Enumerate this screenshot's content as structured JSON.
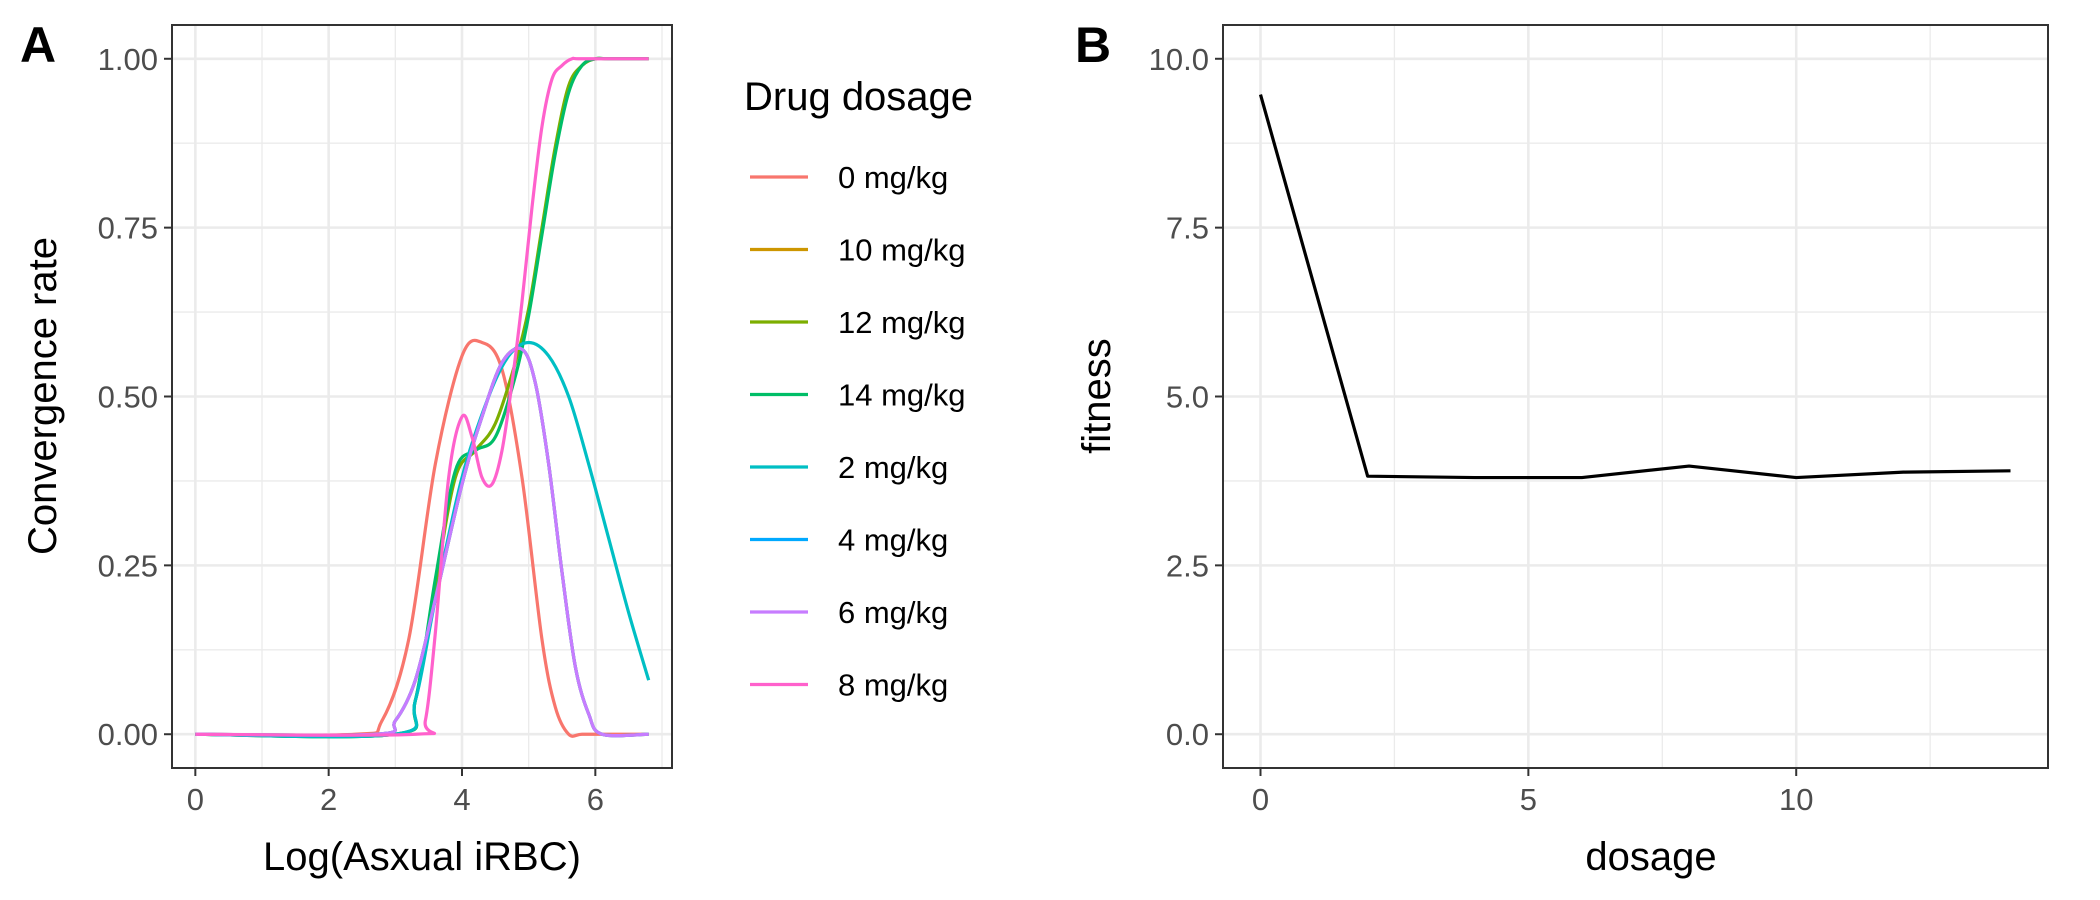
{
  "chart_data": [
    {
      "panel": "A",
      "type": "line",
      "xlabel": "Log(Asxual iRBC)",
      "ylabel": "Convergence rate",
      "xlim": [
        -0.35,
        7.15
      ],
      "ylim": [
        -0.05,
        1.05
      ],
      "x_ticks": [
        0,
        2,
        4,
        6
      ],
      "x_tick_labels": [
        "0",
        "2",
        "4",
        "6"
      ],
      "y_ticks": [
        0,
        0.25,
        0.5,
        0.75,
        1
      ],
      "y_tick_labels": [
        "0.00",
        "0.25",
        "0.50",
        "0.75",
        "1.00"
      ],
      "grid": true,
      "legend": {
        "title": "Drug dosage",
        "position": "right"
      },
      "series": [
        {
          "name": "0 mg/kg",
          "color": "#F8766D",
          "x": [
            0,
            2.4,
            2.8,
            3.2,
            3.6,
            4.0,
            4.3,
            4.6,
            4.9,
            5.2,
            5.4,
            5.6,
            5.8,
            6.2,
            6.8
          ],
          "y": [
            0,
            0,
            0.02,
            0.14,
            0.4,
            0.56,
            0.58,
            0.54,
            0.38,
            0.14,
            0.04,
            0,
            0,
            0,
            0
          ]
        },
        {
          "name": "10 mg/kg",
          "color": "#CD9600",
          "x": [
            0,
            2.7,
            3.0,
            3.3,
            3.6,
            4.0,
            4.3,
            4.6,
            4.9,
            5.1,
            5.3,
            5.5,
            5.7,
            5.9,
            6.1,
            6.8
          ],
          "y": [
            0,
            0,
            0.02,
            0.08,
            0.2,
            0.37,
            0.47,
            0.55,
            0.57,
            0.52,
            0.4,
            0.24,
            0.1,
            0.03,
            0,
            0
          ]
        },
        {
          "name": "12 mg/kg",
          "color": "#7CAE00",
          "x": [
            0,
            3.0,
            3.3,
            3.6,
            3.9,
            4.2,
            4.5,
            4.8,
            5.0,
            5.2,
            5.4,
            5.6,
            5.8,
            6.0,
            6.2,
            6.8
          ],
          "y": [
            0,
            0,
            0.05,
            0.22,
            0.38,
            0.42,
            0.46,
            0.55,
            0.63,
            0.75,
            0.87,
            0.96,
            0.99,
            1.0,
            1.0,
            1.0
          ]
        },
        {
          "name": "14 mg/kg",
          "color": "#00BE67",
          "x": [
            0,
            3.0,
            3.3,
            3.6,
            3.9,
            4.2,
            4.5,
            4.8,
            5.0,
            5.2,
            5.4,
            5.6,
            5.8,
            6.0,
            6.2,
            6.8
          ],
          "y": [
            0,
            0,
            0.05,
            0.23,
            0.39,
            0.42,
            0.44,
            0.53,
            0.62,
            0.74,
            0.86,
            0.95,
            0.99,
            1.0,
            1.0,
            1.0
          ]
        },
        {
          "name": "2 mg/kg",
          "color": "#00BFC4",
          "x": [
            0,
            3.0,
            3.3,
            3.6,
            4.0,
            4.4,
            4.7,
            5.0,
            5.3,
            5.6,
            5.9,
            6.2,
            6.5,
            6.8
          ],
          "y": [
            0,
            0,
            0.05,
            0.2,
            0.38,
            0.5,
            0.56,
            0.58,
            0.56,
            0.5,
            0.4,
            0.29,
            0.18,
            0.08
          ]
        },
        {
          "name": "4 mg/kg",
          "color": "#00A9FF",
          "x": [
            0,
            2.7,
            3.0,
            3.3,
            3.6,
            4.0,
            4.3,
            4.6,
            4.9,
            5.1,
            5.3,
            5.5,
            5.7,
            5.9,
            6.1,
            6.8
          ],
          "y": [
            0,
            0,
            0.02,
            0.08,
            0.2,
            0.37,
            0.47,
            0.55,
            0.57,
            0.52,
            0.4,
            0.24,
            0.1,
            0.03,
            0,
            0
          ]
        },
        {
          "name": "6 mg/kg",
          "color": "#C77CFF",
          "x": [
            0,
            2.7,
            3.0,
            3.3,
            3.6,
            4.0,
            4.3,
            4.6,
            4.9,
            5.1,
            5.3,
            5.5,
            5.7,
            5.9,
            6.1,
            6.8
          ],
          "y": [
            0,
            0,
            0.02,
            0.08,
            0.2,
            0.37,
            0.47,
            0.55,
            0.57,
            0.52,
            0.4,
            0.24,
            0.1,
            0.03,
            0,
            0
          ]
        },
        {
          "name": "8 mg/kg",
          "color": "#FF61CC",
          "x": [
            0,
            3.3,
            3.45,
            3.6,
            3.8,
            4.0,
            4.15,
            4.3,
            4.45,
            4.6,
            4.75,
            4.9,
            5.05,
            5.2,
            5.35,
            5.5,
            5.65,
            5.8,
            6.8
          ],
          "y": [
            0,
            0,
            0.02,
            0.15,
            0.38,
            0.47,
            0.44,
            0.38,
            0.37,
            0.42,
            0.52,
            0.64,
            0.78,
            0.9,
            0.97,
            0.99,
            1.0,
            1.0,
            1.0
          ]
        }
      ]
    },
    {
      "panel": "B",
      "type": "line",
      "xlabel": "dosage",
      "ylabel": "fitness",
      "xlim": [
        -0.7,
        14.7
      ],
      "ylim": [
        -0.5,
        10.5
      ],
      "x_ticks": [
        0,
        5,
        10
      ],
      "x_tick_labels": [
        "0",
        "5",
        "10"
      ],
      "y_ticks": [
        0,
        2.5,
        5,
        7.5,
        10
      ],
      "y_tick_labels": [
        "0.0",
        "2.5",
        "5.0",
        "7.5",
        "10.0"
      ],
      "grid": true,
      "series": [
        {
          "color": "#000000",
          "x": [
            0,
            2,
            4,
            6,
            8,
            10,
            12,
            14
          ],
          "y": [
            9.47,
            3.82,
            3.8,
            3.8,
            3.97,
            3.8,
            3.88,
            3.9
          ]
        }
      ]
    }
  ]
}
